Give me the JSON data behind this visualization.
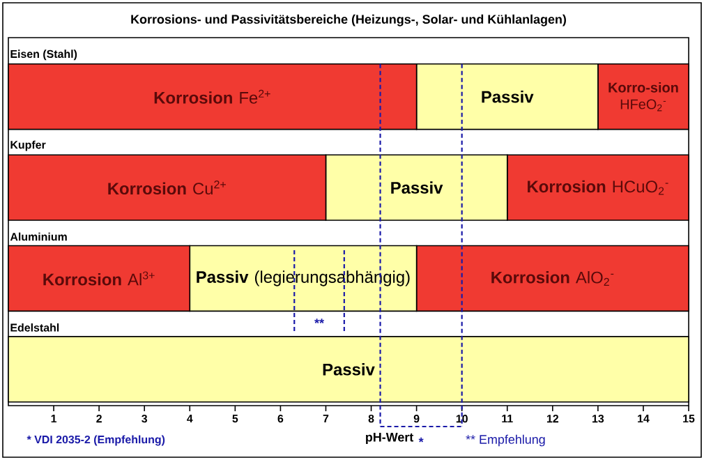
{
  "chart_data": {
    "type": "bar",
    "orientation": "horizontal",
    "stacked": true,
    "title": "Korrosions- und Passivitätsbereiche (Heizungs-, Solar- und Kühlanlagen)",
    "xlabel": "pH-Wert",
    "categories": [
      "Eisen (Stahl)",
      "Kupfer",
      "Aluminium",
      "Edelstahl"
    ],
    "series": [
      {
        "name": "**Korrosion** Fe$^{2+}$",
        "color": "#f03a32",
        "values": [
          9,
          null,
          null,
          null
        ]
      },
      {
        "name": "**Korrosion** Cu$^{2+}$",
        "color": "#f03a32",
        "values": [
          null,
          7,
          null,
          null
        ]
      },
      {
        "name": "**Korrosion** Al$^{3+}$",
        "color": "#f03a32",
        "values": [
          null,
          null,
          4,
          null
        ]
      },
      {
        "name": "**Passiv**",
        "color": "#ffffa8",
        "values": [
          4,
          null,
          null,
          null
        ]
      },
      {
        "name": "**Passiv**",
        "color": "#ffffa8",
        "values": [
          null,
          4,
          null,
          null
        ]
      },
      {
        "name": "**Passiv** (legierungsabhängig)",
        "color": "#ffffa8",
        "values": [
          null,
          null,
          5,
          null
        ]
      },
      {
        "name": "**Passiv**",
        "color": "#ffffa8",
        "values": [
          null,
          null,
          null,
          15
        ]
      },
      {
        "name": "**Korro-sion** HFeO$_{2}$$^{-}$",
        "color": "#f03a32",
        "values": [
          2,
          null,
          null,
          null
        ]
      },
      {
        "name": "**Korrosion** HCuO$_{2}$$^{-}$",
        "color": "#f03a32",
        "values": [
          null,
          4,
          null,
          null
        ]
      },
      {
        "name": "**Korrosion** AlO$_{2}$$^{-}$",
        "color": "#f03a32",
        "values": [
          null,
          null,
          6,
          null
        ]
      }
    ],
    "xlim": [
      0,
      15
    ],
    "xticks": [
      1,
      2,
      3,
      4,
      5,
      6,
      7,
      8,
      9,
      10,
      11,
      12,
      13,
      14,
      15
    ],
    "ref_lines": [
      {
        "axis": "x",
        "value": 8.2,
        "color": "#1a1aa8",
        "line_style": "dashed"
      },
      {
        "axis": "x",
        "value": 10,
        "color": "#1a1aa8",
        "line_style": "dashed"
      }
    ],
    "annotations": [
      "* VDI 2035-2 (Empfehlung)",
      "** Empfehlung",
      "*",
      "**"
    ]
  }
}
